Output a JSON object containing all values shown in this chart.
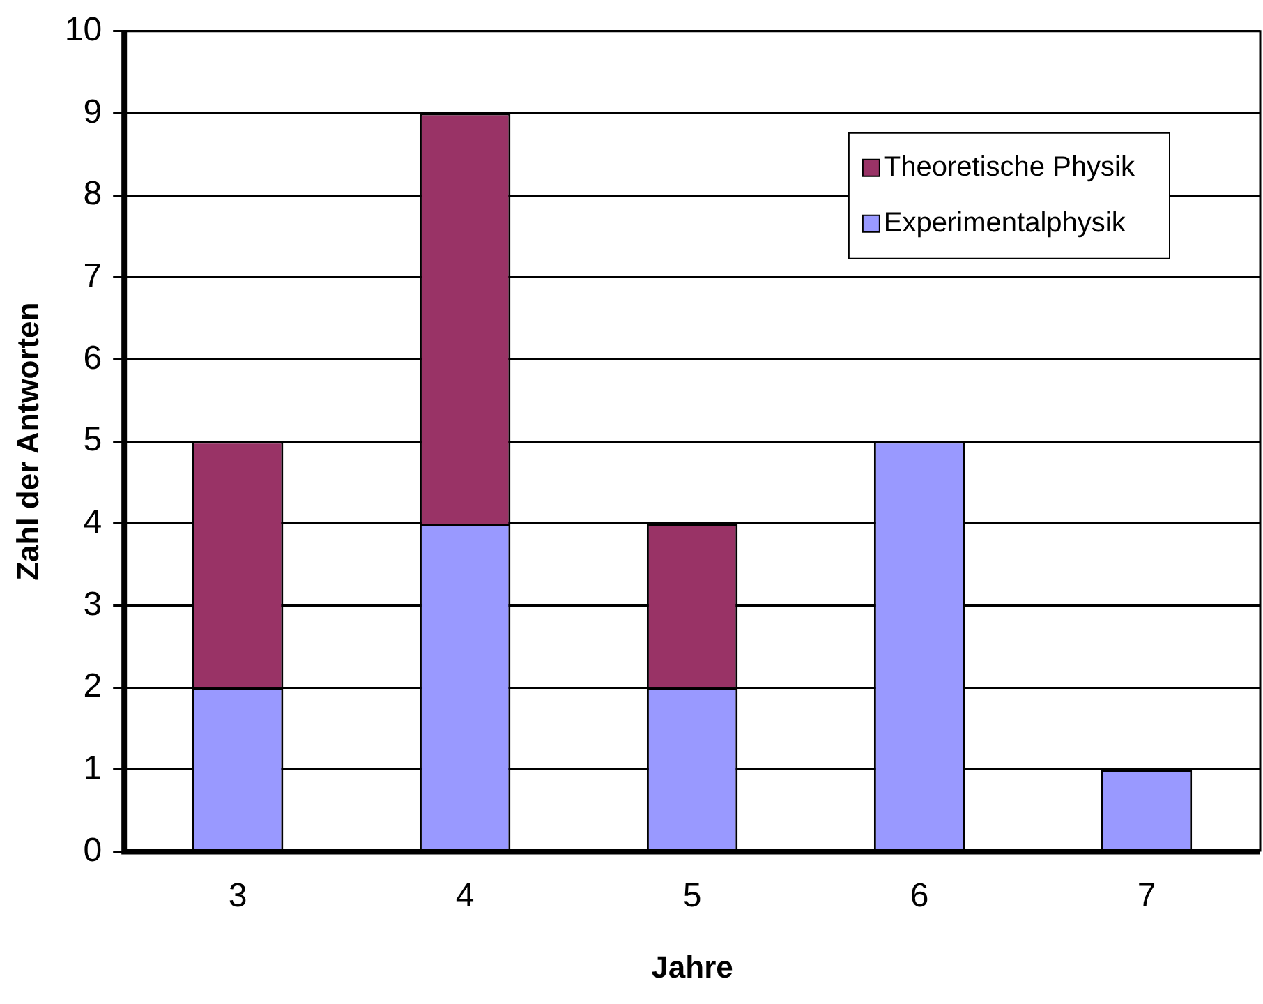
{
  "chart_data": {
    "type": "bar",
    "xlabel": "Jahre",
    "ylabel": "Zahl der Antworten",
    "categories": [
      "3",
      "4",
      "5",
      "6",
      "7"
    ],
    "stacked": true,
    "series": [
      {
        "name": "Experimentalphysik",
        "color": "#9999ff",
        "values": [
          2,
          4,
          2,
          5,
          1
        ]
      },
      {
        "name": "Theoretische Physik",
        "color": "#993366",
        "values": [
          3,
          5,
          2,
          null,
          null
        ]
      }
    ],
    "ylim": [
      0,
      10
    ],
    "yticks": [
      0,
      1,
      2,
      3,
      4,
      5,
      6,
      7,
      8,
      9,
      10
    ],
    "grid": "y",
    "legend": "top right"
  }
}
